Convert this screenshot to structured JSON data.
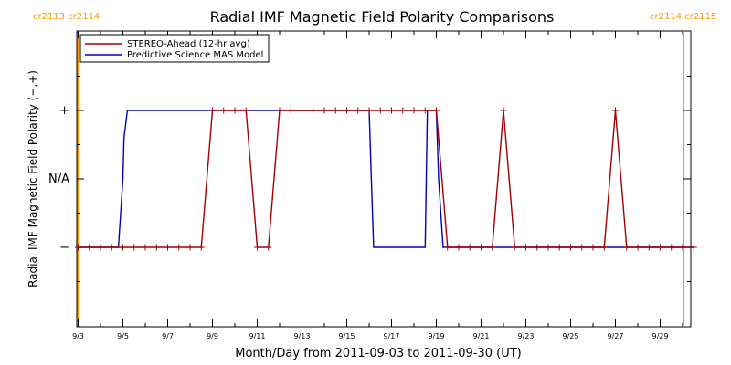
{
  "chart_data": {
    "type": "line",
    "title": "Radial IMF Magnetic Field Polarity Comparisons",
    "xlabel": "Month/Day from 2011-09-03 to 2011-09-30 (UT)",
    "ylabel": "Radial IMF Magnetic Field Polarity (−,+)",
    "x_tick_labels": [
      "9/3",
      "9/5",
      "9/7",
      "9/9",
      "9/11",
      "9/13",
      "9/15",
      "9/17",
      "9/19",
      "9/21",
      "9/23",
      "9/25",
      "9/27",
      "9/29"
    ],
    "x_tick_days": [
      0,
      2,
      4,
      6,
      8,
      10,
      12,
      14,
      16,
      18,
      20,
      22,
      24,
      26
    ],
    "xlim_days": [
      0,
      27.5
    ],
    "y_categories": [
      {
        "label": "+",
        "value": 1
      },
      {
        "label": "N/A",
        "value": 0
      },
      {
        "label": "−",
        "value": -1
      }
    ],
    "ylim": [
      -2,
      2
    ],
    "series": [
      {
        "name": "STEREO-Ahead (12-hr avg)",
        "color": "#a00000",
        "markers": true,
        "x_days": [
          0,
          0.5,
          1,
          1.5,
          2,
          2.5,
          3,
          3.5,
          4,
          4.5,
          5,
          5.5,
          6,
          6.5,
          7,
          7.5,
          8,
          8.5,
          9,
          9.5,
          10,
          10.5,
          11,
          11.5,
          12,
          12.5,
          13,
          13.5,
          14,
          14.5,
          15,
          15.5,
          16,
          16.5,
          17,
          17.5,
          18,
          18.5,
          19,
          19.5,
          20,
          20.5,
          21,
          21.5,
          22,
          22.5,
          23,
          23.5,
          24,
          24.5,
          25,
          25.5,
          26,
          26.5,
          27,
          27.5
        ],
        "y": [
          -1,
          -1,
          -1,
          -1,
          -1,
          -1,
          -1,
          -1,
          -1,
          -1,
          -1,
          -1,
          1,
          1,
          1,
          1,
          -1,
          -1,
          1,
          1,
          1,
          1,
          1,
          1,
          1,
          1,
          1,
          1,
          1,
          1,
          1,
          1,
          1,
          -1,
          -1,
          -1,
          -1,
          -1,
          1,
          -1,
          -1,
          -1,
          -1,
          -1,
          -1,
          -1,
          -1,
          -1,
          1,
          -1,
          -1,
          -1,
          -1,
          -1,
          -1,
          -1
        ]
      },
      {
        "name": "Predictive Science MAS Model",
        "color": "#0000c0",
        "markers": false,
        "x_days": [
          0,
          1.8,
          2,
          2.05,
          2.2,
          2.3,
          13,
          13.1,
          13.2,
          13.3,
          15.5,
          15.6,
          16,
          16.1,
          16.3,
          16.4,
          27.5
        ],
        "y": [
          -1,
          -1,
          0,
          0.6,
          1,
          1,
          1,
          0,
          -1,
          -1,
          -1,
          1,
          1,
          0,
          -1,
          -1,
          -1
        ]
      }
    ],
    "carrington": [
      {
        "text": "cr2113 cr2114",
        "position": "top-left"
      },
      {
        "text": "cr2114 cr2115",
        "position": "top-right"
      }
    ],
    "boundary_color": "#ff9900",
    "legend_position": "top-left",
    "grid": false
  }
}
